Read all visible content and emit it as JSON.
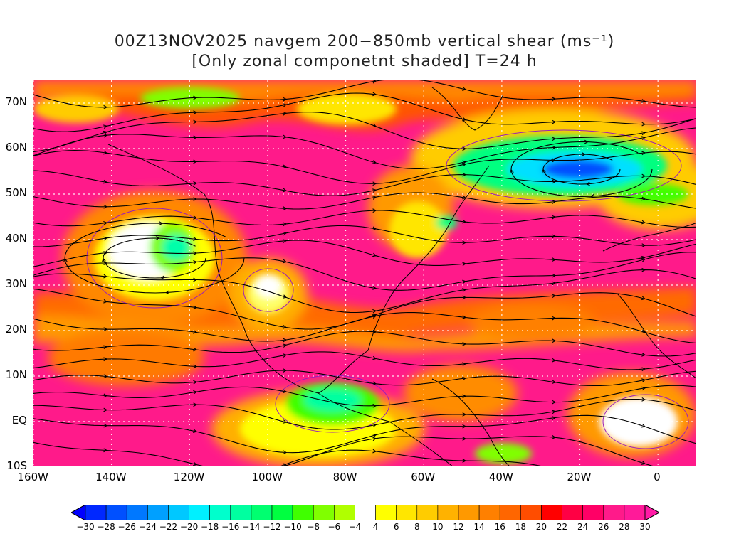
{
  "title": {
    "line1": "00Z13NOV2025 navgem 200−850mb vertical shear (ms⁻¹)",
    "line2": "[Only zonal componetnt shaded] T=24 h"
  },
  "map": {
    "lon_range": [
      -160,
      10
    ],
    "lat_range": [
      -10,
      75
    ],
    "lat_labels": [
      "70N",
      "60N",
      "50N",
      "40N",
      "30N",
      "20N",
      "10N",
      "EQ",
      "10S"
    ],
    "lat_values": [
      70,
      60,
      50,
      40,
      30,
      20,
      10,
      0,
      -10
    ],
    "lon_labels": [
      "160W",
      "140W",
      "120W",
      "100W",
      "80W",
      "60W",
      "40W",
      "20W",
      "0"
    ],
    "lon_values": [
      -160,
      -140,
      -120,
      -100,
      -80,
      -60,
      -40,
      -20,
      0
    ],
    "grid": "dotted",
    "field": "zonal shear component shaded, streamlines overlaid"
  },
  "colorbar": {
    "labels": [
      "−30",
      "−28",
      "−26",
      "−24",
      "−22",
      "−20",
      "−18",
      "−16",
      "−14",
      "−12",
      "−10",
      "−8",
      "−6",
      "−4",
      "4",
      "6",
      "8",
      "10",
      "12",
      "14",
      "16",
      "18",
      "20",
      "22",
      "24",
      "26",
      "28",
      "30"
    ],
    "colors": [
      "#0000ff",
      "#0028ff",
      "#0050ff",
      "#0078ff",
      "#00a0ff",
      "#00c8ff",
      "#00f0ff",
      "#00ffcc",
      "#00ffa0",
      "#00ff70",
      "#00ff40",
      "#40ff00",
      "#80ff00",
      "#b0ff00",
      "#ffffff",
      "#ffff00",
      "#ffe600",
      "#ffcc00",
      "#ffb200",
      "#ff9900",
      "#ff8000",
      "#ff6600",
      "#ff4d00",
      "#ff0000",
      "#ff0044",
      "#ff0066",
      "#ff1a8a",
      "#ff1a99",
      "#ff1aa6"
    ]
  }
}
